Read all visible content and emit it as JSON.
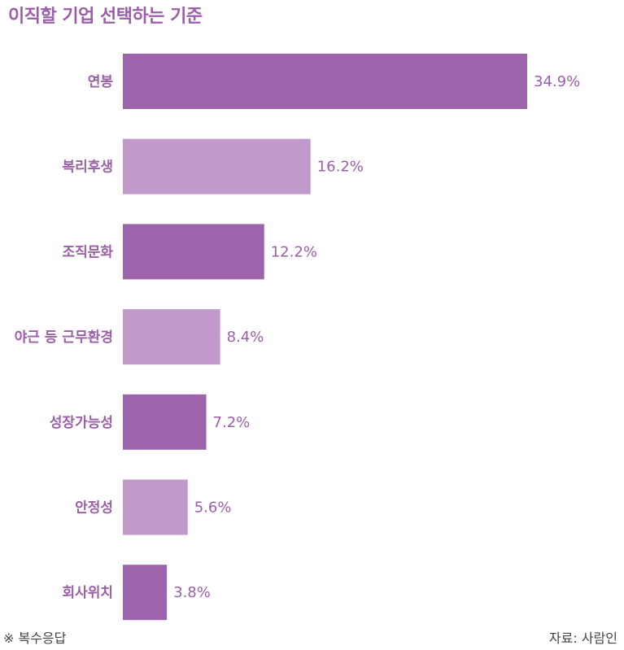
{
  "chart_data": {
    "type": "bar",
    "orientation": "horizontal",
    "title": "이직할 기업 선택하는 기준",
    "categories": [
      "연봉",
      "복리후생",
      "조직문화",
      "야근 등 근무환경",
      "성장가능성",
      "안정성",
      "회사위치"
    ],
    "values": [
      34.9,
      16.2,
      12.2,
      8.4,
      7.2,
      5.6,
      3.8
    ],
    "value_labels": [
      "34.9%",
      "16.2%",
      "12.2%",
      "8.4%",
      "7.2%",
      "5.6%",
      "3.8%"
    ],
    "colors": [
      "#9e64ab",
      "#c199ca",
      "#9e64ab",
      "#c199ca",
      "#9e64ab",
      "#c199ca",
      "#9e64ab"
    ],
    "grid": false
  },
  "footnote": "※ 복수응답",
  "source": "자료: 사람인"
}
